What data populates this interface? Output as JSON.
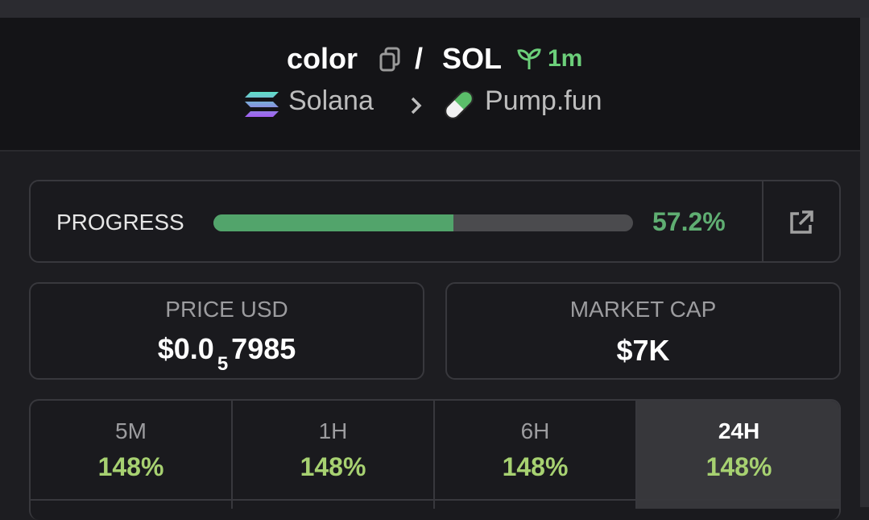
{
  "header": {
    "token": "color",
    "separator": "/",
    "quote": "SOL",
    "age": "1m",
    "chain": "Solana",
    "dex": "Pump.fun"
  },
  "progress": {
    "label": "PROGRESS",
    "value": 57.2,
    "value_label": "57.2%"
  },
  "price": {
    "label": "PRICE USD",
    "prefix": "$0.0",
    "zero_count": "5",
    "digits": "7985"
  },
  "market_cap": {
    "label": "MARKET CAP",
    "value": "$7K"
  },
  "tabs": [
    {
      "label": "5M",
      "change": "148%"
    },
    {
      "label": "1H",
      "change": "148%"
    },
    {
      "label": "6H",
      "change": "148%"
    },
    {
      "label": "24H",
      "change": "148%"
    }
  ]
}
